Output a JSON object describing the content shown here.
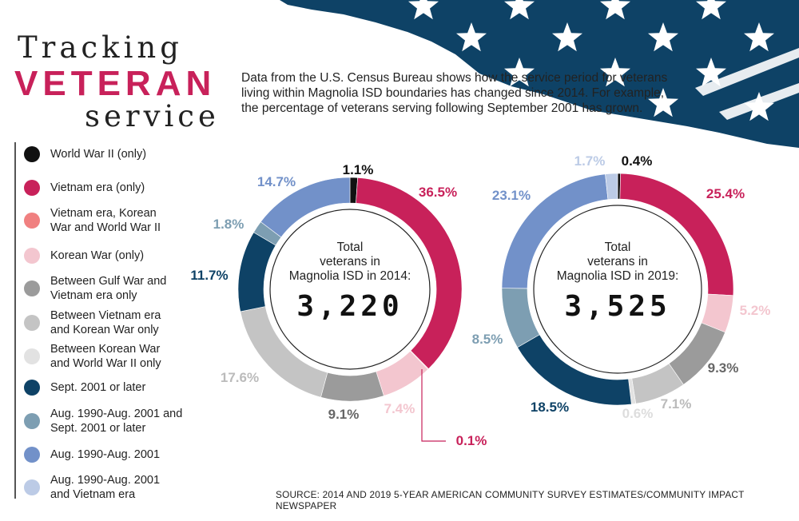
{
  "header": {
    "title_line1": "Tracking",
    "title_line2": "VETERAN",
    "title_line3": "service",
    "intro": "Data from the U.S. Census Bureau shows how the service period for veterans living within Magnolia ISD boundaries has changed since 2014. For example, the percentage of veterans serving following September 2001 has grown."
  },
  "legend": [
    {
      "label": "World War II (only)",
      "color": "#111111"
    },
    {
      "label": "Vietnam era (only)",
      "color": "#c8215a"
    },
    {
      "label": "Vietnam era, Korean War and World War II",
      "color": "#f08080"
    },
    {
      "label": "Korean War (only)",
      "color": "#f3c6cf"
    },
    {
      "label": "Between Gulf War and Vietnam era only",
      "color": "#9b9b9b"
    },
    {
      "label": "Between Vietnam era and Korean War only",
      "color": "#c4c4c4"
    },
    {
      "label": "Between Korean War and World War II only",
      "color": "#e2e2e2"
    },
    {
      "label": "Sept. 2001 or later",
      "color": "#0e4266"
    },
    {
      "label": "Aug. 1990-Aug. 2001 and Sept. 2001 or later",
      "color": "#7d9eb2"
    },
    {
      "label": "Aug. 1990-Aug. 2001",
      "color": "#7291c9"
    },
    {
      "label": "Aug. 1990-Aug. 2001 and Vietnam era",
      "color": "#bccbe6"
    }
  ],
  "chart_data": [
    {
      "type": "pie",
      "center_text": [
        "Total",
        "veterans in",
        "Magnolia ISD in 2014:"
      ],
      "total": "3,220",
      "slices": [
        {
          "category": "World War II (only)",
          "value": 1.1,
          "label": "1.1%",
          "color": "#111111",
          "label_color": "#111111"
        },
        {
          "category": "Vietnam era (only)",
          "value": 36.5,
          "label": "36.5%",
          "color": "#c8215a",
          "label_color": "#c8215a"
        },
        {
          "category": "Vietnam era, Korean War and World War II",
          "value": 0.1,
          "label": "0.1%",
          "color": "#f08080",
          "label_color": "#c8215a"
        },
        {
          "category": "Korean War (only)",
          "value": 7.4,
          "label": "7.4%",
          "color": "#f3c6cf",
          "label_color": "#f3c6cf"
        },
        {
          "category": "Between Gulf War and Vietnam era only",
          "value": 9.1,
          "label": "9.1%",
          "color": "#9b9b9b",
          "label_color": "#666666"
        },
        {
          "category": "Between Vietnam era and Korean War only",
          "value": 17.6,
          "label": "17.6%",
          "color": "#c4c4c4",
          "label_color": "#bbbbbb"
        },
        {
          "category": "Sept. 2001 or later",
          "value": 11.7,
          "label": "11.7%",
          "color": "#0e4266",
          "label_color": "#0e4266"
        },
        {
          "category": "Aug. 1990-Aug. 2001 and Sept. 2001 or later",
          "value": 1.8,
          "label": "1.8%",
          "color": "#7d9eb2",
          "label_color": "#7d9eb2"
        },
        {
          "category": "Aug. 1990-Aug. 2001",
          "value": 14.7,
          "label": "14.7%",
          "color": "#7291c9",
          "label_color": "#7291c9"
        }
      ]
    },
    {
      "type": "pie",
      "center_text": [
        "Total",
        "veterans in",
        "Magnolia ISD in 2019:"
      ],
      "total": "3,525",
      "slices": [
        {
          "category": "World War II (only)",
          "value": 0.4,
          "label": "0.4%",
          "color": "#111111",
          "label_color": "#111111"
        },
        {
          "category": "Vietnam era (only)",
          "value": 25.4,
          "label": "25.4%",
          "color": "#c8215a",
          "label_color": "#c8215a"
        },
        {
          "category": "Korean War (only)",
          "value": 5.2,
          "label": "5.2%",
          "color": "#f3c6cf",
          "label_color": "#f3c6cf"
        },
        {
          "category": "Between Gulf War and Vietnam era only",
          "value": 9.3,
          "label": "9.3%",
          "color": "#9b9b9b",
          "label_color": "#666666"
        },
        {
          "category": "Between Vietnam era and Korean War only",
          "value": 7.1,
          "label": "7.1%",
          "color": "#c4c4c4",
          "label_color": "#bbbbbb"
        },
        {
          "category": "Between Korean War and World War II only",
          "value": 0.6,
          "label": "0.6%",
          "color": "#e2e2e2",
          "label_color": "#dddddd"
        },
        {
          "category": "Sept. 2001 or later",
          "value": 18.5,
          "label": "18.5%",
          "color": "#0e4266",
          "label_color": "#0e4266"
        },
        {
          "category": "Aug. 1990-Aug. 2001 and Sept. 2001 or later",
          "value": 8.5,
          "label": "8.5%",
          "color": "#7d9eb2",
          "label_color": "#7d9eb2"
        },
        {
          "category": "Aug. 1990-Aug. 2001",
          "value": 23.1,
          "label": "23.1%",
          "color": "#7291c9",
          "label_color": "#7291c9"
        },
        {
          "category": "Aug. 1990-Aug. 2001 and Vietnam era",
          "value": 1.7,
          "label": "1.7%",
          "color": "#bccbe6",
          "label_color": "#bccbe6"
        }
      ]
    }
  ],
  "source": "SOURCE: 2014 AND 2019 5-YEAR AMERICAN COMMUNITY SURVEY ESTIMATES/COMMUNITY IMPACT NEWSPAPER"
}
